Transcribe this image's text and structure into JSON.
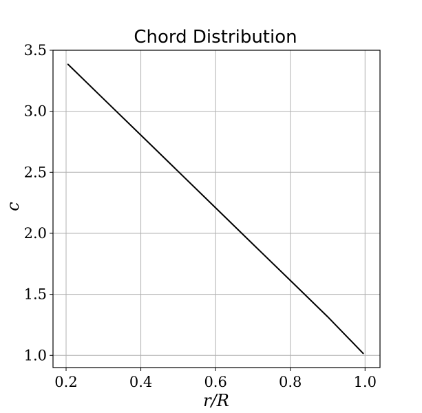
{
  "chart_data": {
    "type": "line",
    "title": "Chord Distribution",
    "xlabel": "r/R",
    "ylabel": "c",
    "xlim": [
      0.165,
      1.04
    ],
    "ylim": [
      0.9,
      3.5
    ],
    "xticks": [
      0.2,
      0.4,
      0.6,
      0.8,
      1.0
    ],
    "xtick_labels": [
      "0.2",
      "0.4",
      "0.6",
      "0.8",
      "1.0"
    ],
    "yticks": [
      1.0,
      1.5,
      2.0,
      2.5,
      3.0,
      3.5
    ],
    "ytick_labels": [
      "1.0",
      "1.5",
      "2.0",
      "2.5",
      "3.0",
      "3.5"
    ],
    "grid": true,
    "series": [
      {
        "x": [
          0.205,
          0.3,
          0.4,
          0.5,
          0.6,
          0.7,
          0.8,
          0.9,
          0.995
        ],
        "y": [
          3.385,
          3.102,
          2.805,
          2.507,
          2.209,
          1.911,
          1.614,
          1.316,
          1.016
        ],
        "color": "#000000"
      }
    ]
  },
  "colors": {
    "line": "#000000",
    "grid": "#b0b0b0",
    "axes": "#000000",
    "background": "#ffffff"
  }
}
